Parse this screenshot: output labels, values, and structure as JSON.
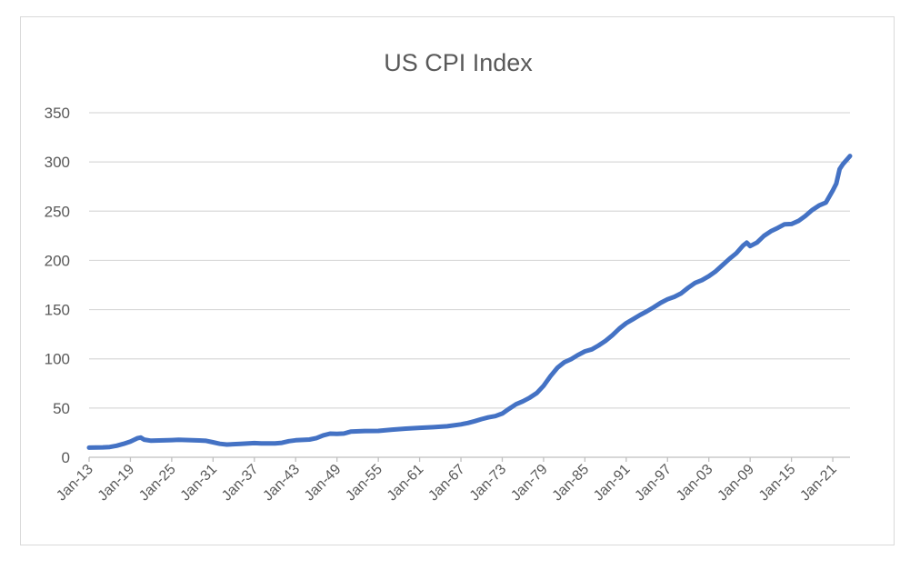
{
  "chart_data": {
    "type": "line",
    "title": "US CPI Index",
    "xlabel": "",
    "ylabel": "",
    "ylim": [
      0,
      350
    ],
    "yticks": [
      0,
      50,
      100,
      150,
      200,
      250,
      300,
      350
    ],
    "xtick_labels": [
      "Jan-13",
      "Jan-19",
      "Jan-25",
      "Jan-31",
      "Jan-37",
      "Jan-43",
      "Jan-49",
      "Jan-55",
      "Jan-61",
      "Jan-67",
      "Jan-73",
      "Jan-79",
      "Jan-85",
      "Jan-91",
      "Jan-97",
      "Jan-03",
      "Jan-09",
      "Jan-15",
      "Jan-21"
    ],
    "xlim": [
      1913,
      2023.5
    ],
    "grid": true,
    "legend": "none",
    "color": "#4472c4",
    "series": [
      {
        "x": [
          1913,
          1915,
          1916,
          1917,
          1918,
          1919,
          1920,
          1920.5,
          1921,
          1922,
          1925,
          1926,
          1929,
          1930,
          1931,
          1932,
          1933,
          1935,
          1937,
          1938,
          1940,
          1941,
          1942,
          1943,
          1945,
          1946,
          1947,
          1948,
          1949,
          1950,
          1951,
          1953,
          1955,
          1957,
          1959,
          1961,
          1963,
          1965,
          1967,
          1968,
          1969,
          1970,
          1971,
          1972,
          1973,
          1974,
          1975,
          1976,
          1977,
          1978,
          1979,
          1980,
          1981,
          1982,
          1983,
          1984,
          1985,
          1986,
          1987,
          1988,
          1989,
          1990,
          1991,
          1992,
          1993,
          1994,
          1995,
          1996,
          1997,
          1998,
          1999,
          2000,
          2001,
          2002,
          2003,
          2004,
          2005,
          2006,
          2007,
          2008,
          2008.5,
          2009,
          2010,
          2011,
          2012,
          2013,
          2014,
          2015,
          2016,
          2017,
          2018,
          2019,
          2020,
          2021,
          2021.5,
          2022,
          2022.5,
          2023,
          2023.5
        ],
        "y": [
          9.8,
          10.1,
          10.4,
          11.7,
          13.7,
          16.0,
          19.3,
          20.0,
          17.9,
          16.8,
          17.5,
          17.7,
          17.1,
          16.7,
          15.2,
          13.7,
          12.9,
          13.7,
          14.4,
          14.1,
          14.0,
          14.7,
          16.3,
          17.3,
          18.0,
          19.5,
          22.3,
          24.0,
          23.8,
          24.1,
          26.0,
          26.7,
          26.8,
          28.1,
          29.1,
          29.9,
          30.6,
          31.5,
          33.4,
          34.8,
          36.7,
          38.8,
          40.5,
          41.8,
          44.4,
          49.3,
          53.8,
          56.9,
          60.6,
          65.2,
          72.6,
          82.4,
          90.9,
          96.5,
          99.6,
          103.9,
          107.6,
          109.6,
          113.6,
          118.3,
          124.0,
          130.7,
          136.2,
          140.3,
          144.5,
          148.2,
          152.4,
          156.9,
          160.5,
          163.0,
          166.6,
          172.2,
          177.1,
          179.9,
          184.0,
          188.9,
          195.3,
          201.6,
          207.3,
          215.3,
          218.0,
          214.5,
          218.1,
          224.9,
          229.6,
          233.0,
          236.7,
          237.0,
          240.0,
          245.1,
          251.1,
          255.7,
          258.8,
          271.0,
          278.0,
          292.7,
          298.0,
          302.0,
          306.0
        ]
      }
    ]
  }
}
